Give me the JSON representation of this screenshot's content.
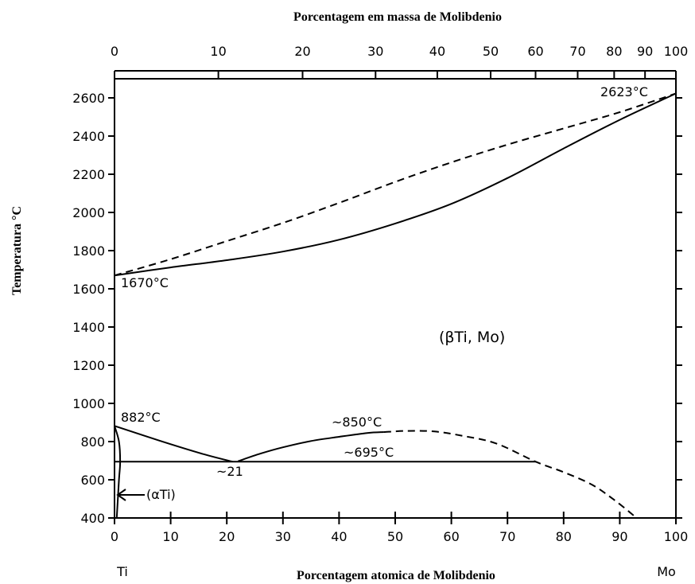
{
  "chart_data": {
    "type": "line",
    "title": "Porcentagem em massa de Molibdenio",
    "xlabel": "Porcentagem atomica de Molibdenio",
    "ylabel": "Temperatura °C",
    "xlim": [
      0,
      100
    ],
    "ylim": [
      400,
      2700
    ],
    "x_ticks": [
      0,
      10,
      20,
      30,
      40,
      50,
      60,
      70,
      80,
      90,
      100
    ],
    "y_ticks": [
      400,
      600,
      800,
      1000,
      1200,
      1400,
      1600,
      1800,
      2000,
      2200,
      2400,
      2600
    ],
    "mass_ticks": [
      {
        "label": "0",
        "at_atomic": 0
      },
      {
        "label": "10",
        "at_atomic": 18.5
      },
      {
        "label": "20",
        "at_atomic": 33.5
      },
      {
        "label": "30",
        "at_atomic": 46.5
      },
      {
        "label": "40",
        "at_atomic": 57.5
      },
      {
        "label": "50",
        "at_atomic": 67
      },
      {
        "label": "60",
        "at_atomic": 75
      },
      {
        "label": "70",
        "at_atomic": 82.5
      },
      {
        "label": "80",
        "at_atomic": 89
      },
      {
        "label": "90",
        "at_atomic": 94.5
      },
      {
        "label": "100",
        "at_atomic": 100
      }
    ],
    "left_element": "Ti",
    "right_element": "Mo",
    "series": [
      {
        "style": "solid",
        "points": [
          [
            0,
            1670
          ],
          [
            10,
            1712
          ],
          [
            20,
            1750
          ],
          [
            30,
            1795
          ],
          [
            40,
            1857
          ],
          [
            50,
            1942
          ],
          [
            60,
            2045
          ],
          [
            70,
            2180
          ],
          [
            80,
            2335
          ],
          [
            90,
            2485
          ],
          [
            100,
            2623
          ]
        ]
      },
      {
        "style": "dashed",
        "points": [
          [
            0,
            1670
          ],
          [
            10,
            1755
          ],
          [
            20,
            1850
          ],
          [
            30,
            1945
          ],
          [
            40,
            2050
          ],
          [
            50,
            2160
          ],
          [
            60,
            2262
          ],
          [
            70,
            2355
          ],
          [
            80,
            2440
          ],
          [
            90,
            2525
          ],
          [
            100,
            2623
          ]
        ]
      },
      {
        "style": "solid",
        "points": [
          [
            0,
            882
          ],
          [
            8,
            805
          ],
          [
            16,
            733
          ],
          [
            21,
            695
          ]
        ]
      },
      {
        "style": "solid",
        "points": [
          [
            22,
            697
          ],
          [
            26,
            737
          ],
          [
            30,
            770
          ],
          [
            35,
            803
          ],
          [
            40,
            825
          ],
          [
            45,
            845
          ],
          [
            48,
            850
          ]
        ]
      },
      {
        "style": "dashed",
        "points": [
          [
            48,
            850
          ],
          [
            52,
            856
          ],
          [
            57,
            853
          ],
          [
            62,
            830
          ],
          [
            68,
            790
          ],
          [
            75,
            695
          ],
          [
            80,
            640
          ],
          [
            85,
            575
          ],
          [
            89,
            495
          ],
          [
            93,
            400
          ]
        ]
      },
      {
        "style": "solid",
        "points": [
          [
            0,
            695
          ],
          [
            75,
            695
          ]
        ]
      },
      {
        "style": "solid",
        "points": [
          [
            0,
            882
          ],
          [
            0.8,
            800
          ],
          [
            1,
            695
          ],
          [
            0.8,
            600
          ],
          [
            0.4,
            400
          ]
        ]
      }
    ],
    "annotations": {
      "mo_melt": "2623°C",
      "ti_melt": "1670°C",
      "beta_phase": "(βTi, Mo)",
      "ti_transition": "882°C",
      "monotectic_top": "~850°C",
      "monotectoid": "~695°C",
      "monotectoid_comp": "~21",
      "alpha_phase": "(αTi)"
    }
  }
}
